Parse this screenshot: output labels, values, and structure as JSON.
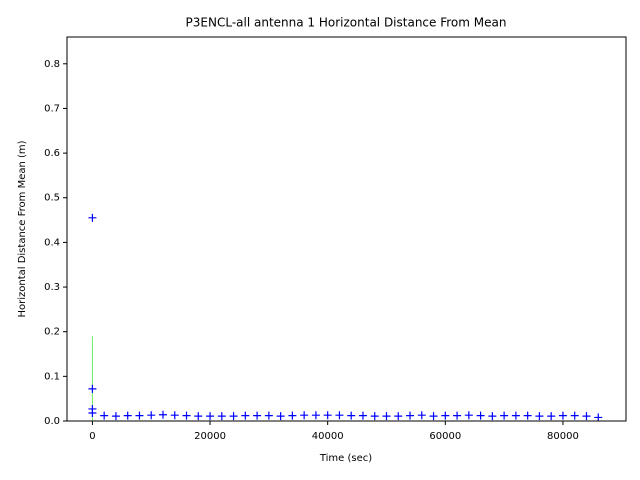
{
  "chart_data": {
    "type": "scatter",
    "title": "P3ENCL-all antenna 1 Horizontal Distance From Mean",
    "x_label": "Time (sec)",
    "y_label": "Horizontal Distance From Mean (m)",
    "xlim": [
      -4320,
      90720
    ],
    "ylim": [
      0,
      0.86
    ],
    "xticks": [
      0,
      20000,
      40000,
      60000,
      80000
    ],
    "yticks": [
      {
        "value": 0,
        "label": "0.0"
      },
      0.1,
      0.2,
      0.3,
      0.4,
      0.5,
      0.6,
      0.7,
      0.8
    ],
    "series": [
      {
        "color": "#66ee66",
        "style": "line",
        "x": [
          0,
          0
        ],
        "values": [
          0,
          0.19
        ]
      },
      {
        "color": "#0000ff",
        "style": "plus",
        "x": [
          0,
          0,
          0,
          0,
          2000,
          4000,
          6000,
          8000,
          10000,
          12000,
          14000,
          16000,
          18000,
          20000,
          22000,
          24000,
          26000,
          28000,
          30000,
          32000,
          34000,
          36000,
          38000,
          40000,
          42000,
          44000,
          46000,
          48000,
          50000,
          52000,
          54000,
          56000,
          58000,
          60000,
          62000,
          64000,
          66000,
          68000,
          70000,
          72000,
          74000,
          76000,
          78000,
          80000,
          82000,
          84000,
          86000
        ],
        "values": [
          0.455,
          0.072,
          0.027,
          0.018,
          0.012,
          0.011,
          0.012,
          0.012,
          0.013,
          0.014,
          0.013,
          0.012,
          0.011,
          0.011,
          0.011,
          0.011,
          0.012,
          0.012,
          0.012,
          0.011,
          0.012,
          0.013,
          0.013,
          0.013,
          0.013,
          0.012,
          0.012,
          0.011,
          0.011,
          0.011,
          0.012,
          0.013,
          0.011,
          0.012,
          0.012,
          0.013,
          0.012,
          0.011,
          0.012,
          0.012,
          0.012,
          0.011,
          0.011,
          0.012,
          0.012,
          0.011,
          0.008
        ]
      }
    ]
  }
}
